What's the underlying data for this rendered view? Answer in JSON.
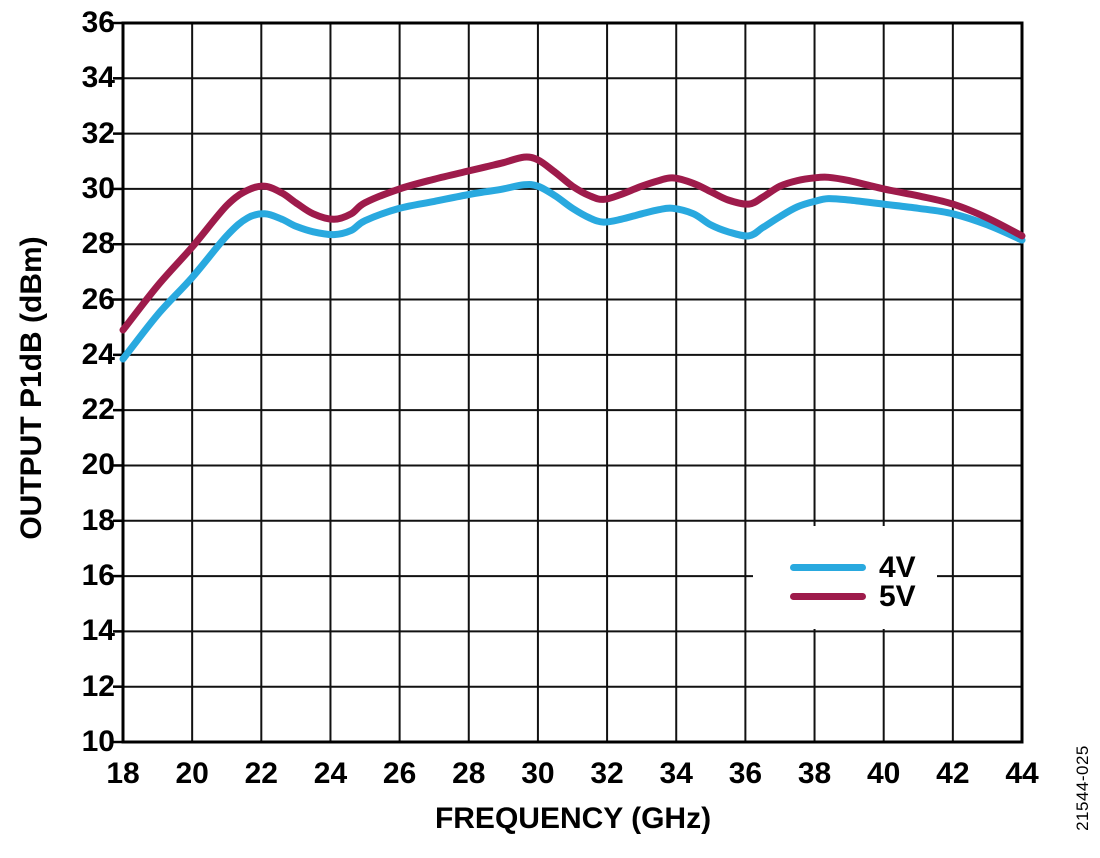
{
  "figure_number": "21544-025",
  "colors": {
    "background": "#ffffff",
    "grid": "#111111",
    "border": "#000000",
    "text": "#000000",
    "series_4v": "#29A9DF",
    "series_5v": "#9E1B4B"
  },
  "legend": {
    "position": "inside-right",
    "entries": [
      {
        "label": "4V",
        "color": "#29A9DF"
      },
      {
        "label": "5V",
        "color": "#9E1B4B"
      }
    ]
  },
  "chart_data": {
    "type": "line",
    "title": "",
    "xlabel": "FREQUENCY (GHz)",
    "ylabel": "OUTPUT P1dB (dBm)",
    "xlim": [
      18,
      44
    ],
    "ylim": [
      10,
      36
    ],
    "xticks": [
      18,
      20,
      22,
      24,
      26,
      28,
      30,
      32,
      34,
      36,
      38,
      40,
      42,
      44
    ],
    "yticks": [
      10,
      12,
      14,
      16,
      18,
      20,
      22,
      24,
      26,
      28,
      30,
      32,
      34,
      36
    ],
    "grid": true,
    "legend_position": "inside-right",
    "x": [
      18,
      19,
      20,
      21,
      21.6,
      22.1,
      22.6,
      23,
      23.5,
      24.1,
      24.6,
      25,
      26,
      27,
      28,
      28.5,
      29,
      29.6,
      30,
      30.5,
      31,
      31.5,
      31.9,
      32.4,
      33,
      33.5,
      33.9,
      34.5,
      35,
      35.5,
      36.1,
      36.5,
      37,
      37.5,
      38,
      38.4,
      39,
      40,
      41,
      42,
      43,
      44
    ],
    "series": [
      {
        "name": "4V",
        "color": "#29A9DF",
        "values": [
          23.85,
          25.45,
          26.8,
          28.3,
          28.95,
          29.1,
          28.9,
          28.65,
          28.45,
          28.35,
          28.5,
          28.85,
          29.3,
          29.55,
          29.8,
          29.9,
          30.0,
          30.15,
          30.1,
          29.75,
          29.3,
          28.95,
          28.8,
          28.9,
          29.1,
          29.25,
          29.3,
          29.1,
          28.7,
          28.45,
          28.3,
          28.6,
          29.0,
          29.35,
          29.55,
          29.65,
          29.6,
          29.45,
          29.3,
          29.1,
          28.7,
          28.15
        ]
      },
      {
        "name": "5V",
        "color": "#9E1B4B",
        "values": [
          24.9,
          26.5,
          27.9,
          29.4,
          29.95,
          30.1,
          29.85,
          29.5,
          29.1,
          28.9,
          29.1,
          29.5,
          30.0,
          30.35,
          30.65,
          30.8,
          30.95,
          31.15,
          31.05,
          30.6,
          30.1,
          29.75,
          29.62,
          29.8,
          30.1,
          30.3,
          30.4,
          30.2,
          29.9,
          29.6,
          29.45,
          29.7,
          30.1,
          30.3,
          30.4,
          30.42,
          30.3,
          30.0,
          29.75,
          29.45,
          28.95,
          28.3
        ]
      }
    ]
  }
}
